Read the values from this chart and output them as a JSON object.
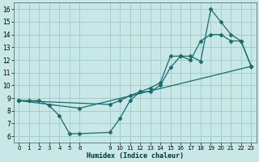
{
  "xlabel": "Humidex (Indice chaleur)",
  "bg_color": "#c8e8e8",
  "grid_color": "#a0c8c8",
  "line_color": "#1a6b6b",
  "xlim": [
    -0.5,
    23.5
  ],
  "ylim": [
    5.5,
    16.5
  ],
  "xticks": [
    0,
    1,
    2,
    3,
    4,
    5,
    6,
    9,
    10,
    11,
    12,
    13,
    14,
    15,
    16,
    17,
    18,
    19,
    20,
    21,
    22,
    23
  ],
  "yticks": [
    6,
    7,
    8,
    9,
    10,
    11,
    12,
    13,
    14,
    15,
    16
  ],
  "line1_x": [
    0,
    1,
    2,
    3,
    4,
    5,
    6,
    9,
    10,
    11,
    12,
    13,
    14,
    15,
    16,
    17,
    18,
    19,
    20,
    21,
    22,
    23
  ],
  "line1_y": [
    8.8,
    8.8,
    8.8,
    8.4,
    7.6,
    6.2,
    6.2,
    6.3,
    7.4,
    8.8,
    9.5,
    9.5,
    10.0,
    11.4,
    12.3,
    12.3,
    11.9,
    16.0,
    15.0,
    14.0,
    13.5,
    11.5
  ],
  "line2_x": [
    0,
    6,
    23
  ],
  "line2_y": [
    8.8,
    8.2,
    11.5
  ],
  "line3_x": [
    0,
    9,
    10,
    11,
    12,
    13,
    14,
    15,
    16,
    17,
    18,
    19,
    20,
    21,
    22,
    23
  ],
  "line3_y": [
    8.8,
    8.5,
    8.8,
    9.2,
    9.5,
    9.8,
    10.2,
    12.3,
    12.3,
    12.0,
    13.5,
    14.0,
    14.0,
    13.5,
    13.5,
    11.5
  ]
}
